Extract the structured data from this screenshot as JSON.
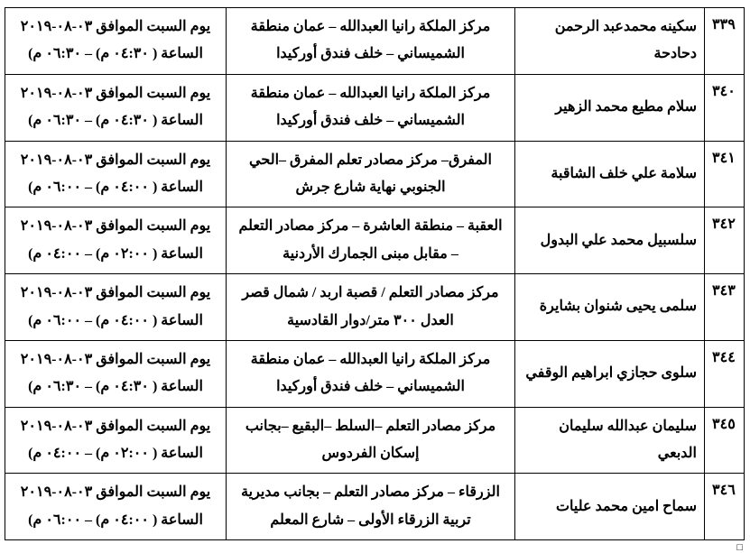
{
  "table": {
    "columns": [
      "num",
      "name",
      "location",
      "time"
    ],
    "rows": [
      {
        "num": "٣٣٩",
        "name": "سكينه محمدعبد الرحمن دحادحة",
        "location": "مركز الملكة رانيا العبدالله – عمان منطقة الشميساني – خلف فندق أوركيدا",
        "time": "يوم السبت الموافق ٠٣-٠٨-٢٠١٩ الساعة ( ٠٤:٣٠ م) – ٠٦:٣٠ م)"
      },
      {
        "num": "٣٤٠",
        "name": "سلام مطيع محمد الزهير",
        "location": "مركز الملكة رانيا العبدالله – عمان منطقة الشميساني – خلف فندق أوركيدا",
        "time": "يوم السبت الموافق ٠٣-٠٨-٢٠١٩ الساعة ( ٠٤:٣٠ م) – ٠٦:٣٠ م)"
      },
      {
        "num": "٣٤١",
        "name": "سلامة علي خلف الشاقبة",
        "location": "المفرق– مركز مصادر تعلم المفرق –الحي الجنوبي نهاية شارع جرش",
        "time": "يوم السبت الموافق ٠٣-٠٨-٢٠١٩ الساعة ( ٠٤:٠٠ م) – ٠٦:٠٠ م)"
      },
      {
        "num": "٣٤٢",
        "name": "سلسبيل محمد علي البدول",
        "location": "العقبة – منطقة العاشرة – مركز مصادر التعلم – مقابل مبنى الجمارك الأردنية",
        "time": "يوم السبت الموافق ٠٣-٠٨-٢٠١٩ الساعة ( ٠٢:٠٠ م) – ٠٤:٠٠ م)"
      },
      {
        "num": "٣٤٣",
        "name": "سلمى يحيى شنوان بشايرة",
        "location": "مركز مصادر التعلم / قصبة  اربد /  شمال قصر العدل ٣٠٠ متر/دوار القادسية",
        "time": "يوم السبت الموافق ٠٣-٠٨-٢٠١٩ الساعة ( ٠٤:٠٠ م) – ٠٦:٠٠ م)"
      },
      {
        "num": "٣٤٤",
        "name": "سلوى حجازي ابراهيم الوقفي",
        "location": "مركز الملكة رانيا العبدالله – عمان منطقة الشميساني – خلف فندق أوركيدا",
        "time": "يوم السبت الموافق ٠٣-٠٨-٢٠١٩ الساعة ( ٠٤:٣٠ م) – ٠٦:٣٠ م)"
      },
      {
        "num": "٣٤٥",
        "name": "سليمان عبدالله سليمان الدبعي",
        "location": "مركز مصادر التعلم –السلط –البقيع –بجانب إسكان الفردوس",
        "time": "يوم السبت الموافق ٠٣-٠٨-٢٠١٩ الساعة ( ٠٢:٠٠ م) – ٠٤:٠٠ م)"
      },
      {
        "num": "٣٤٦",
        "name": "سماح امين محمد عليات",
        "location": "الزرقاء – مركز مصادر التعلم – بجانب مديرية تربية الزرقاء الأولى – شارع المعلم",
        "time": "يوم السبت الموافق ٠٣-٠٨-٢٠١٩ الساعة ( ٠٤:٠٠ م) – ٠٦:٠٠ م)"
      }
    ]
  },
  "cursor_mark": "□"
}
